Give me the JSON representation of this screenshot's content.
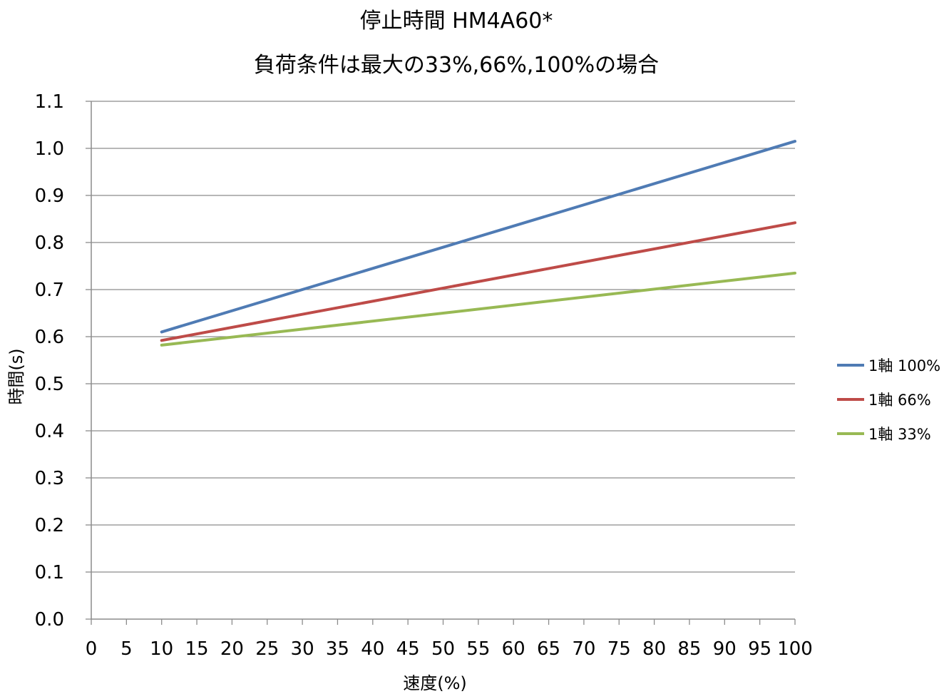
{
  "chart_data": {
    "type": "line",
    "title": "停止時間 HM4A60*",
    "subtitle": "負荷条件は最大の33%,66%,100%の場合",
    "xlabel": "速度(%)",
    "ylabel": "時間(s)",
    "xlim": [
      0,
      100
    ],
    "ylim": [
      0.0,
      1.1
    ],
    "x_ticks": [
      0,
      5,
      10,
      15,
      20,
      25,
      30,
      35,
      40,
      45,
      50,
      55,
      60,
      65,
      70,
      75,
      80,
      85,
      90,
      95,
      100
    ],
    "x_tick_labels": [
      "0",
      "5",
      "10",
      "15",
      "20",
      "25",
      "30",
      "35",
      "40",
      "45",
      "50",
      "55",
      "60",
      "65",
      "70",
      "75",
      "80",
      "85",
      "90",
      "95",
      "100"
    ],
    "y_ticks": [
      0.0,
      0.1,
      0.2,
      0.3,
      0.4,
      0.5,
      0.6,
      0.7,
      0.8,
      0.9,
      1.0,
      1.1
    ],
    "y_tick_labels": [
      "0.0",
      "0.1",
      "0.2",
      "0.3",
      "0.4",
      "0.5",
      "0.6",
      "0.7",
      "0.8",
      "0.9",
      "1.0",
      "1.1"
    ],
    "grid": "horizontal",
    "legend_position": "right",
    "series": [
      {
        "name": "1軸 100%",
        "color": "#4f7bb4",
        "x": [
          10,
          100
        ],
        "y": [
          0.61,
          1.015
        ]
      },
      {
        "name": "1軸 66%",
        "color": "#be4b48",
        "x": [
          10,
          100
        ],
        "y": [
          0.592,
          0.842
        ]
      },
      {
        "name": "1軸 33%",
        "color": "#98b954",
        "x": [
          10,
          100
        ],
        "y": [
          0.582,
          0.735
        ]
      }
    ]
  }
}
